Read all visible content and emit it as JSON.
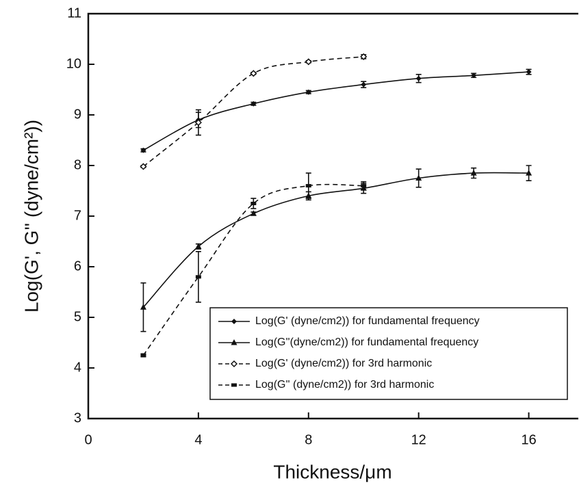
{
  "chart_data": {
    "type": "line",
    "xlabel": "Thickness/μm",
    "ylabel": "Log(G', G'' (dyne/cm²))",
    "xlim": [
      0,
      17.8
    ],
    "xticks": [
      0,
      4,
      8,
      12,
      16
    ],
    "ylim": [
      3,
      11
    ],
    "yticks": [
      3,
      4,
      5,
      6,
      7,
      8,
      9,
      10,
      11
    ],
    "legend": "lower right",
    "series": [
      {
        "name": "Log(G' (dyne/cm2)) for fundamental frequency",
        "color": "#111111",
        "dash": false,
        "marker": "diamond",
        "x": [
          2,
          4,
          6,
          8,
          10,
          12,
          14,
          16
        ],
        "values": [
          8.3,
          8.9,
          9.22,
          9.45,
          9.6,
          9.72,
          9.78,
          9.85
        ],
        "errors": [
          0.03,
          0.15,
          0.03,
          0.03,
          0.06,
          0.08,
          0.04,
          0.05
        ]
      },
      {
        "name": "Log(G''(dyne/cm2)) for fundamental frequency",
        "color": "#111111",
        "dash": false,
        "marker": "triangle",
        "x": [
          2,
          4,
          6,
          8,
          10,
          12,
          14,
          16
        ],
        "values": [
          5.2,
          6.4,
          7.05,
          7.4,
          7.55,
          7.75,
          7.85,
          7.85
        ],
        "errors": [
          0.48,
          0.05,
          0.03,
          0.08,
          0.1,
          0.18,
          0.1,
          0.15
        ]
      },
      {
        "name": "Log(G' (dyne/cm2)) for 3rd harmonic",
        "color": "#111111",
        "dash": true,
        "marker": "open-diamond",
        "x": [
          2,
          4,
          6,
          8,
          10
        ],
        "values": [
          7.98,
          8.85,
          9.82,
          10.05,
          10.15
        ],
        "errors": [
          0.02,
          0.25,
          0.02,
          0.02,
          0.04
        ]
      },
      {
        "name": "Log(G'' (dyne/cm2)) for 3rd harmonic",
        "color": "#111111",
        "dash": true,
        "marker": "dash",
        "x": [
          2,
          4,
          6,
          8,
          10
        ],
        "values": [
          4.25,
          5.8,
          7.25,
          7.6,
          7.6
        ],
        "errors": [
          0.03,
          0.5,
          0.1,
          0.25,
          0.08
        ]
      }
    ]
  }
}
